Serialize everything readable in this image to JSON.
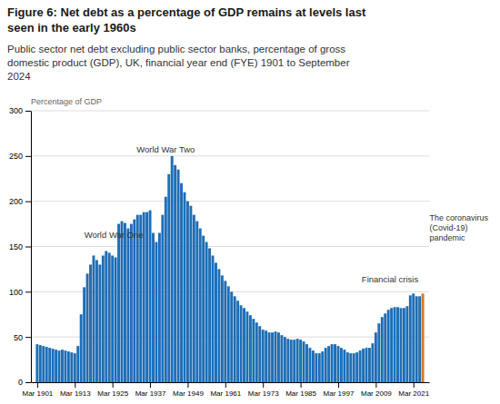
{
  "chart_data": {
    "type": "bar",
    "title": [
      "Figure 6: Net debt as a percentage of GDP remains at levels last",
      "seen in the early 1960s"
    ],
    "subtitle": [
      "Public sector net debt excluding public sector banks, percentage of gross",
      "domestic product (GDP), UK, financial year end (FYE) 1901 to September",
      "2024"
    ],
    "ylabel": "Percentage of GDP",
    "x": [
      1901,
      1902,
      1903,
      1904,
      1905,
      1906,
      1907,
      1908,
      1909,
      1910,
      1911,
      1912,
      1913,
      1914,
      1915,
      1916,
      1917,
      1918,
      1919,
      1920,
      1921,
      1922,
      1923,
      1924,
      1925,
      1926,
      1927,
      1928,
      1929,
      1930,
      1931,
      1932,
      1933,
      1934,
      1935,
      1936,
      1937,
      1938,
      1939,
      1940,
      1941,
      1942,
      1943,
      1944,
      1945,
      1946,
      1947,
      1948,
      1949,
      1950,
      1951,
      1952,
      1953,
      1954,
      1955,
      1956,
      1957,
      1958,
      1959,
      1960,
      1961,
      1962,
      1963,
      1964,
      1965,
      1966,
      1967,
      1968,
      1969,
      1970,
      1971,
      1972,
      1973,
      1974,
      1975,
      1976,
      1977,
      1978,
      1979,
      1980,
      1981,
      1982,
      1983,
      1984,
      1985,
      1986,
      1987,
      1988,
      1989,
      1990,
      1991,
      1992,
      1993,
      1994,
      1995,
      1996,
      1997,
      1998,
      1999,
      2000,
      2001,
      2002,
      2003,
      2004,
      2005,
      2006,
      2007,
      2008,
      2009,
      2010,
      2011,
      2012,
      2013,
      2014,
      2015,
      2016,
      2017,
      2018,
      2019,
      2020,
      2021,
      2022,
      2023,
      2024
    ],
    "values": [
      42,
      41,
      40,
      39,
      38,
      37,
      36,
      35,
      36,
      35,
      34,
      33,
      32,
      40,
      75,
      105,
      120,
      130,
      140,
      135,
      130,
      140,
      145,
      143,
      140,
      138,
      175,
      178,
      176,
      170,
      175,
      180,
      185,
      185,
      188,
      188,
      190,
      165,
      155,
      165,
      185,
      205,
      230,
      250,
      240,
      235,
      220,
      210,
      200,
      195,
      185,
      178,
      170,
      162,
      155,
      148,
      140,
      132,
      125,
      118,
      112,
      106,
      100,
      95,
      90,
      85,
      82,
      78,
      74,
      70,
      66,
      62,
      58,
      57,
      55,
      55,
      56,
      55,
      52,
      50,
      48,
      47,
      47,
      48,
      47,
      45,
      42,
      38,
      35,
      32,
      32,
      34,
      38,
      40,
      42,
      42,
      40,
      38,
      36,
      33,
      32,
      32,
      33,
      35,
      37,
      38,
      38,
      43,
      55,
      65,
      72,
      76,
      80,
      82,
      83,
      83,
      82,
      82,
      84,
      96,
      98,
      95,
      95,
      98
    ],
    "colors": [
      "#1f6eb5",
      "#1f6eb5",
      "#1f6eb5",
      "#1f6eb5",
      "#1f6eb5",
      "#1f6eb5",
      "#1f6eb5",
      "#1f6eb5",
      "#1f6eb5",
      "#1f6eb5",
      "#1f6eb5",
      "#1f6eb5",
      "#1f6eb5",
      "#1f6eb5",
      "#1f6eb5",
      "#1f6eb5",
      "#1f6eb5",
      "#1f6eb5",
      "#1f6eb5",
      "#1f6eb5",
      "#1f6eb5",
      "#1f6eb5",
      "#1f6eb5",
      "#1f6eb5",
      "#1f6eb5",
      "#1f6eb5",
      "#1f6eb5",
      "#1f6eb5",
      "#1f6eb5",
      "#1f6eb5",
      "#1f6eb5",
      "#1f6eb5",
      "#1f6eb5",
      "#1f6eb5",
      "#1f6eb5",
      "#1f6eb5",
      "#1f6eb5",
      "#1f6eb5",
      "#1f6eb5",
      "#1f6eb5",
      "#1f6eb5",
      "#1f6eb5",
      "#1f6eb5",
      "#1f6eb5",
      "#1f6eb5",
      "#1f6eb5",
      "#1f6eb5",
      "#1f6eb5",
      "#1f6eb5",
      "#1f6eb5",
      "#1f6eb5",
      "#1f6eb5",
      "#1f6eb5",
      "#1f6eb5",
      "#1f6eb5",
      "#1f6eb5",
      "#1f6eb5",
      "#1f6eb5",
      "#1f6eb5",
      "#1f6eb5",
      "#1f6eb5",
      "#1f6eb5",
      "#1f6eb5",
      "#1f6eb5",
      "#1f6eb5",
      "#1f6eb5",
      "#1f6eb5",
      "#1f6eb5",
      "#1f6eb5",
      "#1f6eb5",
      "#1f6eb5",
      "#1f6eb5",
      "#1f6eb5",
      "#1f6eb5",
      "#1f6eb5",
      "#1f6eb5",
      "#1f6eb5",
      "#1f6eb5",
      "#1f6eb5",
      "#1f6eb5",
      "#1f6eb5",
      "#1f6eb5",
      "#1f6eb5",
      "#1f6eb5",
      "#1f6eb5",
      "#1f6eb5",
      "#1f6eb5",
      "#1f6eb5",
      "#1f6eb5",
      "#1f6eb5",
      "#1f6eb5",
      "#1f6eb5",
      "#1f6eb5",
      "#1f6eb5",
      "#1f6eb5",
      "#1f6eb5",
      "#1f6eb5",
      "#1f6eb5",
      "#1f6eb5",
      "#1f6eb5",
      "#1f6eb5",
      "#1f6eb5",
      "#1f6eb5",
      "#1f6eb5",
      "#1f6eb5",
      "#1f6eb5",
      "#1f6eb5",
      "#1f6eb5",
      "#1f6eb5",
      "#1f6eb5",
      "#1f6eb5",
      "#1f6eb5",
      "#1f6eb5",
      "#1f6eb5",
      "#1f6eb5",
      "#1f6eb5",
      "#1f6eb5",
      "#1f6eb5",
      "#1f6eb5",
      "#1f6eb5",
      "#1f6eb5",
      "#1f6eb5",
      "#1f6eb5",
      "#d4782a"
    ],
    "xlim": [
      1899,
      2026
    ],
    "xticks": [
      {
        "value": 1901,
        "label": "Mar 1901"
      },
      {
        "value": 1913,
        "label": "Mar 1913"
      },
      {
        "value": 1925,
        "label": "Mar 1925"
      },
      {
        "value": 1937,
        "label": "Mar 1937"
      },
      {
        "value": 1949,
        "label": "Mar 1949"
      },
      {
        "value": 1961,
        "label": "Mar 1961"
      },
      {
        "value": 1973,
        "label": "Mar 1973"
      },
      {
        "value": 1985,
        "label": "Mar 1985"
      },
      {
        "value": 1997,
        "label": "Mar 1997"
      },
      {
        "value": 2009,
        "label": "Mar 2009"
      },
      {
        "value": 2021,
        "label": "Mar 2021"
      }
    ],
    "ylim": [
      0,
      300
    ],
    "yticks": [
      0,
      50,
      100,
      150,
      200,
      250,
      300
    ],
    "grid": true,
    "annotations": [
      {
        "text": "World War One",
        "x": 1916,
        "y": 158
      },
      {
        "text": "World War Two",
        "x": 1942,
        "y": 252
      },
      {
        "text": "Financial crisis",
        "x": 2004.5,
        "y": 108
      },
      {
        "text": [
          "The coronavirus",
          "(Covid-19)",
          "pandemic"
        ],
        "x": 2025,
        "y": 170
      }
    ]
  }
}
